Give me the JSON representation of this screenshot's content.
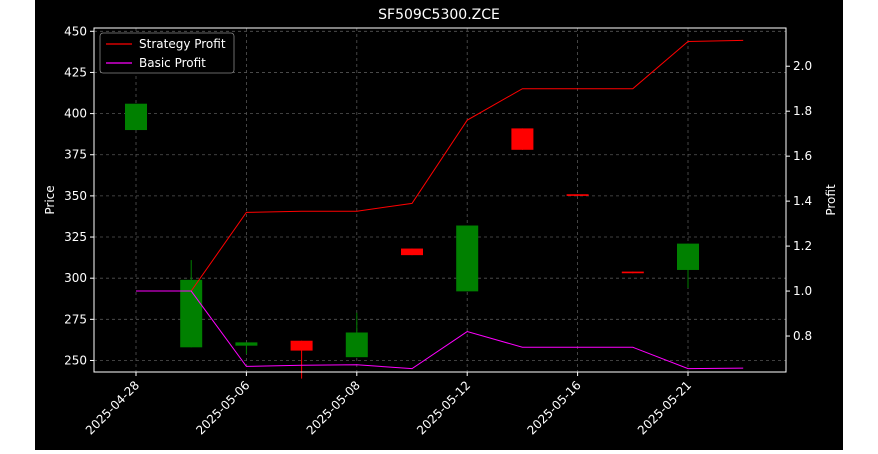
{
  "chart_data": {
    "type": "candlestick",
    "title": "SF509C5300.ZCE",
    "ylabel_left": "Price",
    "ylabel_right": "Profit",
    "xlabel": "",
    "x_ticks": [
      "2025-04-28",
      "2025-05-06",
      "2025-05-08",
      "2025-05-12",
      "2025-05-16",
      "2025-05-21"
    ],
    "y_left_ticks": [
      250,
      275,
      300,
      325,
      350,
      375,
      400,
      425,
      450
    ],
    "y_right_ticks": [
      "0.8",
      "1.0",
      "1.2",
      "1.4",
      "1.6",
      "1.8",
      "2.0"
    ],
    "y_left_range": [
      243,
      452
    ],
    "y_right_range": [
      0.64,
      2.17
    ],
    "grid": true,
    "legend": {
      "position": "top-left",
      "entries": [
        {
          "name": "Strategy Profit",
          "color": "#ff0000"
        },
        {
          "name": "Basic Profit",
          "color": "#ff00ff"
        }
      ]
    },
    "colors": {
      "up": "#008000",
      "down": "#ff0000",
      "background": "#000000",
      "grid": "#555555"
    },
    "candles": [
      {
        "open": 390,
        "close": 406,
        "high": 406,
        "low": 390
      },
      {
        "open": 258,
        "close": 299,
        "high": 311,
        "low": 258
      },
      {
        "open": 259,
        "close": 261,
        "high": 261,
        "low": 254
      },
      {
        "open": 262,
        "close": 256,
        "high": 262,
        "low": 239
      },
      {
        "open": 252,
        "close": 267,
        "high": 279,
        "low": 252
      },
      {
        "open": 318,
        "close": 314,
        "high": 318,
        "low": 314
      },
      {
        "open": 292,
        "close": 332,
        "high": 332,
        "low": 292
      },
      {
        "open": 391,
        "close": 378,
        "high": 391,
        "low": 378
      },
      {
        "open": 351,
        "close": 350,
        "high": 351,
        "low": 350
      },
      {
        "open": 304,
        "close": 303,
        "high": 304,
        "low": 303
      },
      {
        "open": 305,
        "close": 321,
        "high": 321,
        "low": 294
      }
    ],
    "series": [
      {
        "name": "Strategy Profit",
        "values": [
          1.0,
          1.0,
          1.35,
          1.355,
          1.355,
          1.39,
          1.76,
          1.9,
          1.9,
          1.9,
          2.11,
          2.115
        ]
      },
      {
        "name": "Basic Profit",
        "values": [
          1.0,
          1.0,
          0.665,
          0.67,
          0.672,
          0.655,
          0.82,
          0.75,
          0.75,
          0.75,
          0.655,
          0.657
        ]
      }
    ]
  }
}
